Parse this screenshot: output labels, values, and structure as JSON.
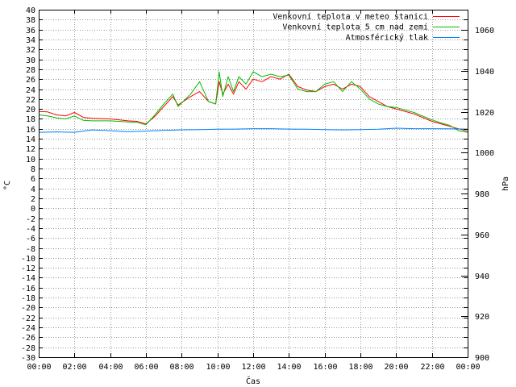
{
  "chart_data": {
    "type": "line",
    "grid": true,
    "legend_placement": "top-right",
    "xlabel": "Čas",
    "ylabel": "°C",
    "y2label": "hPa",
    "xlim": [
      0,
      24
    ],
    "ylim": [
      -30,
      40
    ],
    "y2lim": [
      900,
      1070
    ],
    "x_ticks": [
      "00:00",
      "02:00",
      "04:00",
      "06:00",
      "08:00",
      "10:00",
      "12:00",
      "14:00",
      "16:00",
      "18:00",
      "20:00",
      "22:00",
      "00:00"
    ],
    "y_ticks": [
      40,
      38,
      36,
      34,
      32,
      30,
      28,
      26,
      24,
      22,
      20,
      18,
      16,
      14,
      12,
      10,
      8,
      6,
      4,
      2,
      0,
      -2,
      -4,
      -6,
      -8,
      -10,
      -12,
      -14,
      -16,
      -18,
      -20,
      -22,
      -24,
      -26,
      -28,
      -30
    ],
    "y2_ticks": [
      1060,
      1040,
      1020,
      1000,
      980,
      960,
      940,
      920,
      900
    ],
    "series": [
      {
        "name": "Venkovní teplota v meteo stanici",
        "axis": "left",
        "color": "#ff0000",
        "points": [
          [
            0,
            19.5
          ],
          [
            0.5,
            19.4
          ],
          [
            1,
            18.8
          ],
          [
            1.5,
            18.6
          ],
          [
            2,
            19.3
          ],
          [
            2.5,
            18.3
          ],
          [
            3,
            18.1
          ],
          [
            4,
            18.0
          ],
          [
            5,
            17.6
          ],
          [
            5.5,
            17.5
          ],
          [
            6,
            17.0
          ],
          [
            6.5,
            18.5
          ],
          [
            7,
            20.5
          ],
          [
            7.5,
            22.5
          ],
          [
            7.8,
            20.8
          ],
          [
            8.5,
            22.5
          ],
          [
            9,
            23.5
          ],
          [
            9.5,
            21.5
          ],
          [
            9.9,
            21.0
          ],
          [
            10.1,
            25.5
          ],
          [
            10.3,
            23.0
          ],
          [
            10.6,
            25.0
          ],
          [
            10.9,
            23.0
          ],
          [
            11.2,
            25.5
          ],
          [
            11.6,
            24.0
          ],
          [
            12,
            26.0
          ],
          [
            12.5,
            25.5
          ],
          [
            13,
            26.5
          ],
          [
            13.5,
            26.0
          ],
          [
            14,
            27.0
          ],
          [
            14.5,
            24.5
          ],
          [
            15,
            23.8
          ],
          [
            15.5,
            23.5
          ],
          [
            16,
            24.5
          ],
          [
            16.5,
            25.0
          ],
          [
            17,
            24.0
          ],
          [
            17.5,
            25.0
          ],
          [
            18,
            24.5
          ],
          [
            18.5,
            22.5
          ],
          [
            19,
            21.5
          ],
          [
            19.5,
            20.5
          ],
          [
            20,
            20.0
          ],
          [
            21,
            19.0
          ],
          [
            22,
            17.5
          ],
          [
            22.5,
            17.0
          ],
          [
            23,
            16.5
          ],
          [
            23.5,
            16.0
          ],
          [
            24,
            15.5
          ]
        ]
      },
      {
        "name": "Venkovní teplota 5 cm nad zemí",
        "axis": "left",
        "color": "#00bf00",
        "points": [
          [
            0,
            18.8
          ],
          [
            0.5,
            18.6
          ],
          [
            1,
            18.2
          ],
          [
            1.5,
            18.0
          ],
          [
            2,
            18.6
          ],
          [
            2.5,
            17.7
          ],
          [
            3,
            17.6
          ],
          [
            4,
            17.6
          ],
          [
            5,
            17.4
          ],
          [
            5.5,
            17.3
          ],
          [
            6,
            16.8
          ],
          [
            6.5,
            18.8
          ],
          [
            7,
            21.0
          ],
          [
            7.5,
            23.0
          ],
          [
            7.8,
            20.5
          ],
          [
            8.5,
            23.0
          ],
          [
            9,
            25.5
          ],
          [
            9.5,
            21.5
          ],
          [
            9.9,
            21.0
          ],
          [
            10.1,
            27.5
          ],
          [
            10.3,
            22.5
          ],
          [
            10.6,
            26.5
          ],
          [
            10.9,
            23.5
          ],
          [
            11.2,
            26.5
          ],
          [
            11.6,
            25.0
          ],
          [
            12,
            27.5
          ],
          [
            12.5,
            26.5
          ],
          [
            13,
            27.0
          ],
          [
            13.5,
            26.5
          ],
          [
            14,
            26.8
          ],
          [
            14.5,
            24.0
          ],
          [
            15,
            23.5
          ],
          [
            15.5,
            23.5
          ],
          [
            16,
            25.0
          ],
          [
            16.5,
            25.5
          ],
          [
            17,
            23.5
          ],
          [
            17.5,
            25.5
          ],
          [
            18,
            24.0
          ],
          [
            18.5,
            22.0
          ],
          [
            19,
            21.0
          ],
          [
            19.5,
            20.5
          ],
          [
            20,
            20.3
          ],
          [
            21,
            19.3
          ],
          [
            22,
            17.8
          ],
          [
            22.5,
            17.2
          ],
          [
            23,
            16.7
          ],
          [
            23.5,
            15.6
          ],
          [
            24,
            15.3
          ]
        ]
      },
      {
        "name": "Atmosférický tlak",
        "axis": "right",
        "color": "#0080ff",
        "points": [
          [
            0,
            1010.0
          ],
          [
            1,
            1010.2
          ],
          [
            2,
            1010.0
          ],
          [
            3,
            1011.2
          ],
          [
            4,
            1010.8
          ],
          [
            5,
            1010.3
          ],
          [
            6,
            1010.6
          ],
          [
            7,
            1011.0
          ],
          [
            8,
            1011.2
          ],
          [
            9,
            1011.3
          ],
          [
            10,
            1011.5
          ],
          [
            11,
            1011.6
          ],
          [
            12,
            1011.8
          ],
          [
            13,
            1011.8
          ],
          [
            14,
            1011.6
          ],
          [
            15,
            1011.5
          ],
          [
            16,
            1011.3
          ],
          [
            17,
            1011.2
          ],
          [
            18,
            1011.3
          ],
          [
            19,
            1011.5
          ],
          [
            20,
            1012.0
          ],
          [
            21,
            1011.8
          ],
          [
            22,
            1011.8
          ],
          [
            23,
            1011.7
          ],
          [
            24,
            1011.6
          ]
        ]
      }
    ]
  }
}
